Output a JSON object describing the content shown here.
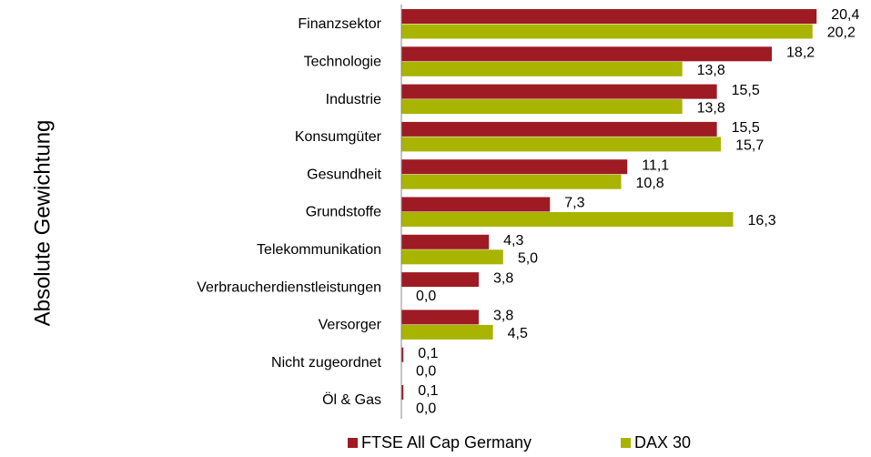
{
  "chart_data": {
    "type": "barh",
    "ylabel": "Absolute Gewichtung",
    "categories": [
      "Finanzsektor",
      "Technologie",
      "Industrie",
      "Konsumgüter",
      "Gesundheit",
      "Grundstoffe",
      "Telekommunikation",
      "Verbraucherdienstleistungen",
      "Versorger",
      "Nicht zugeordnet",
      "Öl & Gas"
    ],
    "series": [
      {
        "name": "FTSE All Cap Germany",
        "color": "#9e1b24",
        "values": [
          20.4,
          18.2,
          15.5,
          15.5,
          11.1,
          7.3,
          4.3,
          3.8,
          3.8,
          0.1,
          0.1
        ],
        "value_labels": [
          "20,4",
          "18,2",
          "15,5",
          "15,5",
          "11,1",
          "7,3",
          "4,3",
          "3,8",
          "3,8",
          "0,1",
          "0,1"
        ]
      },
      {
        "name": "DAX 30",
        "color": "#a8b400",
        "values": [
          20.2,
          13.8,
          13.8,
          15.7,
          10.8,
          16.3,
          5.0,
          0.0,
          4.5,
          0.0,
          0.0
        ],
        "value_labels": [
          "20,2",
          "13,8",
          "13,8",
          "15,7",
          "10,8",
          "16,3",
          "5,0",
          "0,0",
          "4,5",
          "0,0",
          "0,0"
        ]
      }
    ],
    "xlim": [
      0,
      22
    ]
  }
}
